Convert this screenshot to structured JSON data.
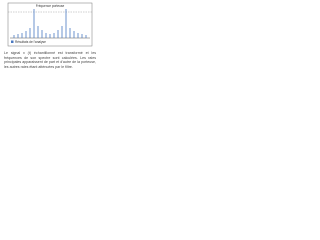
{
  "figure": {
    "label_top": "Fréquence porteuse",
    "legend": "Résultats de l'analyse"
  },
  "caption": "Le signal x (t) échantillonné est transformé et les fréquences de son spectre sont calculées. Les raies principales apparaissent de part et d'autre de la porteuse, les autres raies étant atténuées par le filtre."
}
